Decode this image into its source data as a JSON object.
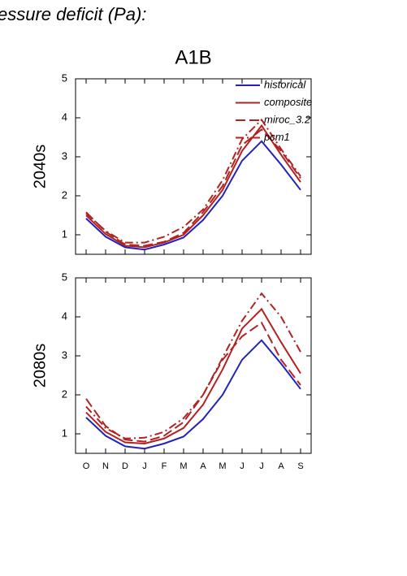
{
  "header": {
    "title": "essure deficit (Pa):"
  },
  "chart_data": [
    {
      "type": "line",
      "title": "A1B",
      "ylabel": "2040s",
      "categories": [
        "O",
        "N",
        "D",
        "J",
        "F",
        "M",
        "A",
        "M",
        "J",
        "J",
        "A",
        "S"
      ],
      "show_xticklabels": false,
      "legend": "upper right",
      "ylim": [
        0.5,
        5
      ],
      "yticks": [
        1,
        2,
        3,
        4,
        5
      ],
      "series": [
        {
          "name": "historical",
          "color": "#2222b8",
          "linestyle": "solid",
          "values": [
            1.42,
            0.95,
            0.68,
            0.62,
            0.75,
            0.93,
            1.38,
            2.0,
            2.9,
            3.4,
            2.8,
            2.15
          ]
        },
        {
          "name": "composite",
          "color": "#b22222",
          "linestyle": "solid",
          "values": [
            1.5,
            1.02,
            0.72,
            0.68,
            0.8,
            1.0,
            1.5,
            2.15,
            3.15,
            3.8,
            3.05,
            2.35
          ]
        },
        {
          "name": "miroc_3.2",
          "color": "#b22222",
          "linestyle": "dashed",
          "values": [
            1.58,
            1.08,
            0.75,
            0.72,
            0.82,
            1.05,
            1.58,
            2.25,
            3.3,
            3.7,
            3.15,
            2.45
          ]
        },
        {
          "name": "pcm1",
          "color": "#b22222",
          "linestyle": "dashdot",
          "values": [
            1.55,
            1.1,
            0.8,
            0.8,
            0.95,
            1.2,
            1.65,
            2.4,
            3.45,
            3.95,
            3.2,
            2.5
          ]
        }
      ]
    },
    {
      "type": "line",
      "ylabel": "2080s",
      "categories": [
        "O",
        "N",
        "D",
        "J",
        "F",
        "M",
        "A",
        "M",
        "J",
        "J",
        "A",
        "S"
      ],
      "show_xticklabels": true,
      "legend": false,
      "ylim": [
        0.5,
        5
      ],
      "yticks": [
        1,
        2,
        3,
        4,
        5
      ],
      "series": [
        {
          "name": "historical",
          "color": "#2222b8",
          "linestyle": "solid",
          "values": [
            1.42,
            0.95,
            0.68,
            0.62,
            0.75,
            0.93,
            1.38,
            2.0,
            2.9,
            3.4,
            2.8,
            2.15
          ]
        },
        {
          "name": "composite",
          "color": "#b22222",
          "linestyle": "solid",
          "values": [
            1.55,
            1.05,
            0.78,
            0.75,
            0.88,
            1.15,
            1.75,
            2.65,
            3.7,
            4.2,
            3.35,
            2.55
          ]
        },
        {
          "name": "miroc_3.2",
          "color": "#b22222",
          "linestyle": "dashed",
          "values": [
            1.9,
            1.2,
            0.85,
            0.8,
            0.95,
            1.3,
            2.0,
            2.9,
            3.5,
            3.85,
            2.9,
            2.25
          ]
        },
        {
          "name": "pcm1",
          "color": "#b22222",
          "linestyle": "dashdot",
          "values": [
            1.7,
            1.15,
            0.88,
            0.9,
            1.05,
            1.4,
            2.0,
            2.95,
            3.9,
            4.6,
            4.0,
            3.1
          ]
        }
      ]
    }
  ]
}
